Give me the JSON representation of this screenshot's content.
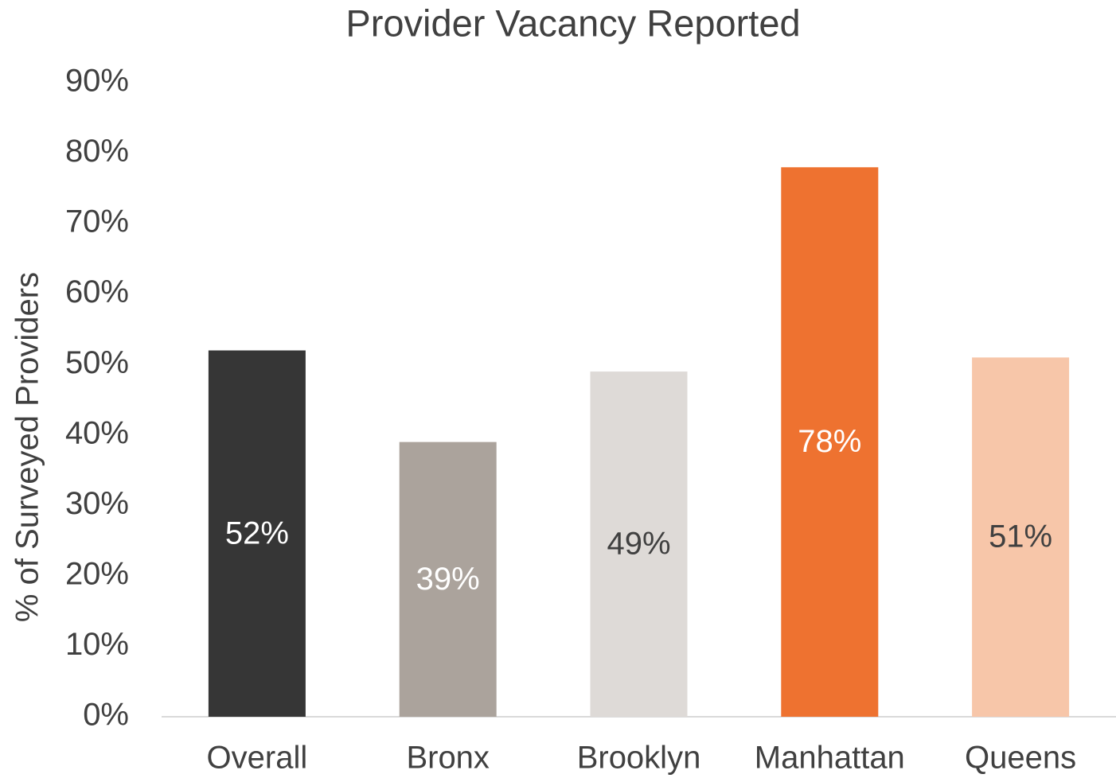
{
  "chart_data": {
    "type": "bar",
    "title": "Provider Vacancy Reported",
    "y_label": "% of Surveyed Providers",
    "categories": [
      "Overall",
      "Bronx",
      "Brooklyn",
      "Manhattan",
      "Queens"
    ],
    "values": [
      52,
      39,
      49,
      78,
      51
    ],
    "value_labels": [
      "52%",
      "39%",
      "49%",
      "78%",
      "51%"
    ],
    "colors": [
      "#363636",
      "#aba39c",
      "#dedad7",
      "#ee7230",
      "#f7c6a9"
    ],
    "label_colors": [
      "#ffffff",
      "#ffffff",
      "#404040",
      "#ffffff",
      "#404040"
    ],
    "ylim": [
      0,
      90
    ],
    "yticks": [
      {
        "value": 0,
        "label": "0%"
      },
      {
        "value": 10,
        "label": "10%"
      },
      {
        "value": 20,
        "label": "20%"
      },
      {
        "value": 30,
        "label": "30%"
      },
      {
        "value": 40,
        "label": "40%"
      },
      {
        "value": 50,
        "label": "50%"
      },
      {
        "value": 60,
        "label": "60%"
      },
      {
        "value": 70,
        "label": "70%"
      },
      {
        "value": 80,
        "label": "80%"
      },
      {
        "value": 90,
        "label": "90%"
      }
    ],
    "grid": false
  }
}
